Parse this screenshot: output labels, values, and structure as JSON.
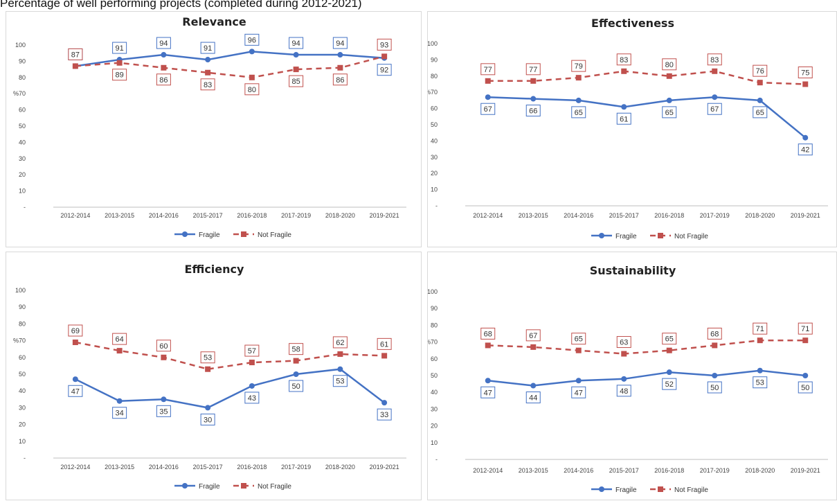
{
  "page_title": "Percentage of well performing projects (completed during 2012-2021)",
  "colors": {
    "fragile": "#4472C4",
    "not_fragile": "#C0504D",
    "axis": "#bfbfbf"
  },
  "chart_data": [
    {
      "type": "line",
      "title": "Relevance",
      "ylabel": "%",
      "ylim": [
        0,
        100
      ],
      "y_ticks": [
        "-",
        "10",
        "20",
        "30",
        "40",
        "50",
        "60",
        "70",
        "80",
        "90",
        "100"
      ],
      "categories": [
        "2012-2014",
        "2013-2015",
        "2014-2016",
        "2015-2017",
        "2016-2018",
        "2017-2019",
        "2018-2020",
        "2019-2021"
      ],
      "series": [
        {
          "name": "Fragile",
          "values": [
            87,
            91,
            94,
            91,
            96,
            94,
            94,
            92
          ]
        },
        {
          "name": "Not Fragile",
          "values": [
            87,
            89,
            86,
            83,
            80,
            85,
            86,
            93
          ]
        }
      ],
      "legend": "bottom",
      "grid": false
    },
    {
      "type": "line",
      "title": "Effectiveness",
      "ylabel": "%",
      "ylim": [
        0,
        100
      ],
      "y_ticks": [
        "-",
        "10",
        "20",
        "30",
        "40",
        "50",
        "60",
        "70",
        "80",
        "90",
        "100"
      ],
      "categories": [
        "2012-2014",
        "2013-2015",
        "2014-2016",
        "2015-2017",
        "2016-2018",
        "2017-2019",
        "2018-2020",
        "2019-2021"
      ],
      "series": [
        {
          "name": "Fragile",
          "values": [
            67,
            66,
            65,
            61,
            65,
            67,
            65,
            42
          ]
        },
        {
          "name": "Not Fragile",
          "values": [
            77,
            77,
            79,
            83,
            80,
            83,
            76,
            75
          ]
        }
      ],
      "legend": "bottom",
      "grid": false
    },
    {
      "type": "line",
      "title": "Efficiency",
      "ylabel": "%",
      "ylim": [
        0,
        100
      ],
      "y_ticks": [
        "-",
        "10",
        "20",
        "30",
        "40",
        "50",
        "60",
        "70",
        "80",
        "90",
        "100"
      ],
      "categories": [
        "2012-2014",
        "2013-2015",
        "2014-2016",
        "2015-2017",
        "2016-2018",
        "2017-2019",
        "2018-2020",
        "2019-2021"
      ],
      "series": [
        {
          "name": "Fragile",
          "values": [
            47,
            34,
            35,
            30,
            43,
            50,
            53,
            33
          ]
        },
        {
          "name": "Not Fragile",
          "values": [
            69,
            64,
            60,
            53,
            57,
            58,
            62,
            61
          ]
        }
      ],
      "legend": "bottom",
      "grid": false
    },
    {
      "type": "line",
      "title": "Sustainability",
      "ylabel": "%",
      "ylim": [
        0,
        100
      ],
      "y_ticks": [
        "-",
        "10",
        "20",
        "30",
        "40",
        "50",
        "60",
        "70",
        "80",
        "90",
        "100"
      ],
      "categories": [
        "2012-2014",
        "2013-2015",
        "2014-2016",
        "2015-2017",
        "2016-2018",
        "2017-2019",
        "2018-2020",
        "2019-2021"
      ],
      "series": [
        {
          "name": "Fragile",
          "values": [
            47,
            44,
            47,
            48,
            52,
            50,
            53,
            50
          ]
        },
        {
          "name": "Not Fragile",
          "values": [
            68,
            67,
            65,
            63,
            65,
            68,
            71,
            71
          ]
        }
      ],
      "legend": "bottom",
      "grid": false
    }
  ]
}
